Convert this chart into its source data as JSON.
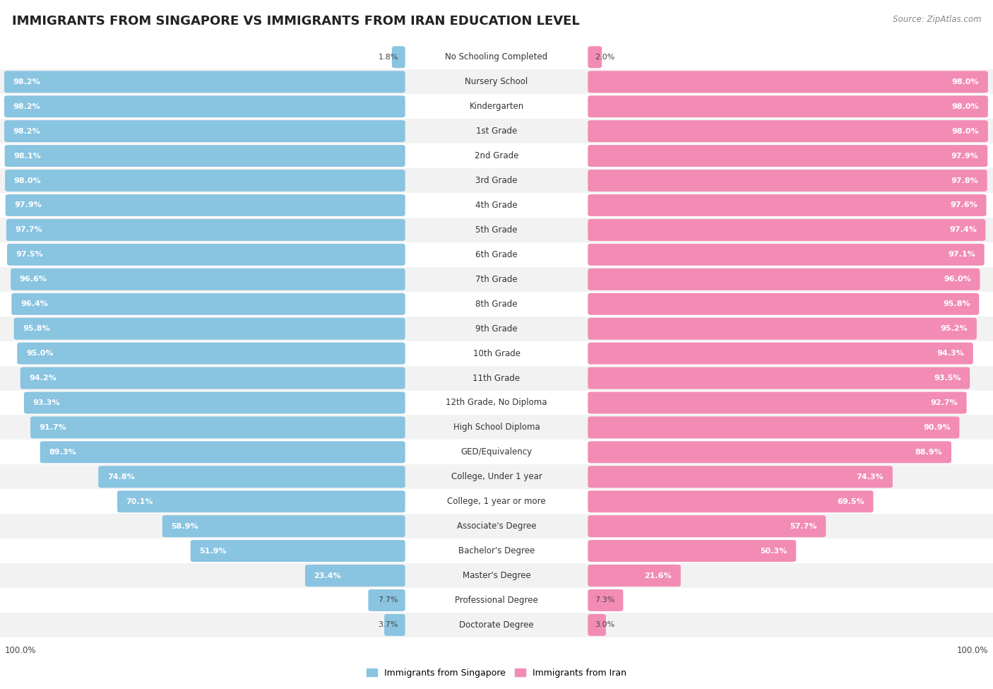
{
  "title": "IMMIGRANTS FROM SINGAPORE VS IMMIGRANTS FROM IRAN EDUCATION LEVEL",
  "source": "Source: ZipAtlas.com",
  "categories": [
    "No Schooling Completed",
    "Nursery School",
    "Kindergarten",
    "1st Grade",
    "2nd Grade",
    "3rd Grade",
    "4th Grade",
    "5th Grade",
    "6th Grade",
    "7th Grade",
    "8th Grade",
    "9th Grade",
    "10th Grade",
    "11th Grade",
    "12th Grade, No Diploma",
    "High School Diploma",
    "GED/Equivalency",
    "College, Under 1 year",
    "College, 1 year or more",
    "Associate's Degree",
    "Bachelor's Degree",
    "Master's Degree",
    "Professional Degree",
    "Doctorate Degree"
  ],
  "singapore_values": [
    1.8,
    98.2,
    98.2,
    98.2,
    98.1,
    98.0,
    97.9,
    97.7,
    97.5,
    96.6,
    96.4,
    95.8,
    95.0,
    94.2,
    93.3,
    91.7,
    89.3,
    74.8,
    70.1,
    58.9,
    51.9,
    23.4,
    7.7,
    3.7
  ],
  "iran_values": [
    2.0,
    98.0,
    98.0,
    98.0,
    97.9,
    97.8,
    97.6,
    97.4,
    97.1,
    96.0,
    95.8,
    95.2,
    94.3,
    93.5,
    92.7,
    90.9,
    88.9,
    74.3,
    69.5,
    57.7,
    50.3,
    21.6,
    7.3,
    3.0
  ],
  "singapore_color": "#89c4e1",
  "iran_color": "#f28cb4",
  "row_bg_even": "#ffffff",
  "row_bg_odd": "#f2f2f2",
  "title_fontsize": 13,
  "label_fontsize": 8.5,
  "value_fontsize": 8,
  "legend_fontsize": 9,
  "source_fontsize": 8.5
}
